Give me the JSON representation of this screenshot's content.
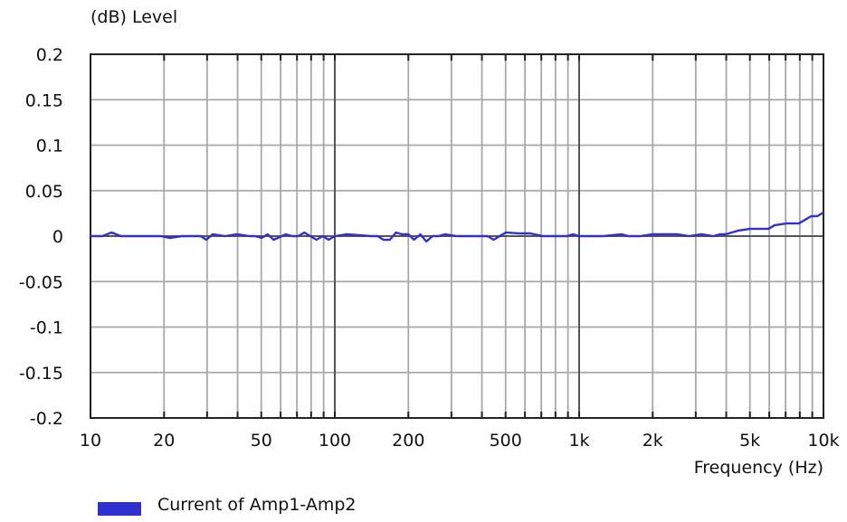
{
  "chart_data": {
    "type": "line",
    "ylabel": "(dB)  Level",
    "xlabel": "Frequency  (Hz)",
    "x_scale": "log",
    "xlim": [
      10,
      10000
    ],
    "ylim": [
      -0.2,
      0.2
    ],
    "grid": true,
    "x_ticks": [
      {
        "value": 10,
        "label": "10"
      },
      {
        "value": 20,
        "label": "20"
      },
      {
        "value": 50,
        "label": "50"
      },
      {
        "value": 100,
        "label": "100"
      },
      {
        "value": 200,
        "label": "200"
      },
      {
        "value": 500,
        "label": "500"
      },
      {
        "value": 1000,
        "label": "1k"
      },
      {
        "value": 2000,
        "label": "2k"
      },
      {
        "value": 5000,
        "label": "5k"
      },
      {
        "value": 10000,
        "label": "10k"
      }
    ],
    "y_ticks": [
      {
        "value": 0.2,
        "label": "0.2"
      },
      {
        "value": 0.15,
        "label": "0.15"
      },
      {
        "value": 0.1,
        "label": "0.1"
      },
      {
        "value": 0.05,
        "label": "0.05"
      },
      {
        "value": 0,
        "label": "0"
      },
      {
        "value": -0.05,
        "label": "-0.05"
      },
      {
        "value": -0.1,
        "label": "-0.1"
      },
      {
        "value": -0.15,
        "label": "-0.15"
      },
      {
        "value": -0.2,
        "label": "-0.2"
      }
    ],
    "legend_position": "bottom-left",
    "series": [
      {
        "name": "Current of Amp1-Amp2",
        "color": "#3030d0",
        "x": [
          10,
          11.2,
          12.2,
          13.3,
          15,
          17.8,
          19.4,
          21,
          23.7,
          26.6,
          28.2,
          29.8,
          31.6,
          35.5,
          39.8,
          44.7,
          47.3,
          50.1,
          53.1,
          56.2,
          63,
          66.8,
          70.8,
          75,
          79.4,
          84.1,
          89.1,
          94.4,
          100,
          112,
          141,
          150,
          158,
          168,
          178,
          188,
          200,
          211,
          224,
          237,
          251,
          266,
          282,
          316,
          355,
          398,
          422,
          447,
          473,
          501,
          562,
          631,
          708,
          794,
          891,
          944,
          1000,
          1259,
          1496,
          1585,
          1778,
          1995,
          2239,
          2512,
          2818,
          3162,
          3548,
          3758,
          3981,
          4217,
          4467,
          5012,
          5623,
          5957,
          6310,
          7079,
          7499,
          7943,
          8414,
          8913,
          9441,
          10000
        ],
        "y": [
          0,
          0,
          0.004,
          0,
          0,
          0,
          0,
          -0.002,
          0,
          0,
          0,
          -0.004,
          0.002,
          0,
          0.002,
          0,
          0,
          -0.002,
          0.002,
          -0.004,
          0.002,
          0,
          0,
          0.004,
          0,
          -0.004,
          0,
          -0.004,
          0,
          0.002,
          0,
          0,
          -0.004,
          -0.004,
          0.004,
          0.002,
          0.002,
          -0.004,
          0.002,
          -0.006,
          0,
          0,
          0.002,
          0,
          0,
          0,
          0,
          -0.004,
          0,
          0.004,
          0.003,
          0.003,
          0,
          0,
          0,
          0.002,
          0,
          0,
          0.002,
          0,
          0,
          0.002,
          0.002,
          0.002,
          0,
          0.002,
          0,
          0.002,
          0.002,
          0.004,
          0.006,
          0.008,
          0.008,
          0.008,
          0.012,
          0.014,
          0.014,
          0.014,
          0.018,
          0.022,
          0.022,
          0.026
        ]
      }
    ]
  }
}
